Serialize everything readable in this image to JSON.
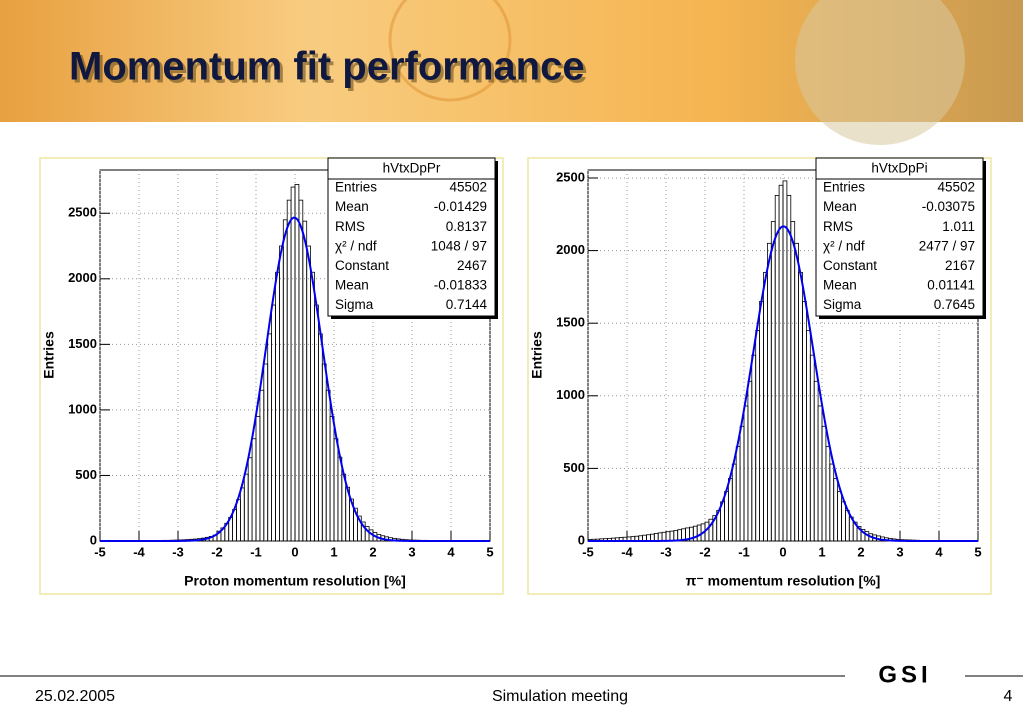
{
  "slide": {
    "title": "Momentum fit performance"
  },
  "footer": {
    "date": "25.02.2005",
    "event": "Simulation meeting",
    "page": 4,
    "logo": "GSI"
  },
  "chart_data": [
    {
      "type": "histogram",
      "xlabel": "Proton momentum resolution [%]",
      "ylabel": "Entries",
      "bins": [
        -5,
        -4.9,
        -4.8,
        -4.7,
        -4.6,
        -4.5,
        -4.4,
        -4.3,
        -4.2,
        -4.1,
        -4,
        -3.9,
        -3.8,
        -3.7,
        -3.6,
        -3.5,
        -3.4,
        -3.3,
        -3.2,
        -3.1,
        -3,
        -2.9,
        -2.8,
        -2.7,
        -2.6,
        -2.5,
        -2.4,
        -2.3,
        -2.2,
        -2.1,
        -2,
        -1.9,
        -1.8,
        -1.7,
        -1.6,
        -1.5,
        -1.4,
        -1.3,
        -1.2,
        -1.1,
        -1,
        -0.9,
        -0.8,
        -0.7,
        -0.6,
        -0.5,
        -0.4,
        -0.3,
        -0.2,
        -0.1,
        0,
        0.1,
        0.2,
        0.3,
        0.4,
        0.5,
        0.6,
        0.7,
        0.8,
        0.9,
        1,
        1.1,
        1.2,
        1.3,
        1.4,
        1.5,
        1.6,
        1.7,
        1.8,
        1.9,
        2,
        2.1,
        2.2,
        2.3,
        2.4,
        2.5,
        2.6,
        2.7,
        2.8,
        2.9,
        3,
        3.1,
        3.2,
        3.3,
        3.4,
        3.5,
        3.6,
        3.7,
        3.8,
        3.9,
        4,
        4.1,
        4.2,
        4.3,
        4.4,
        4.5,
        4.6,
        4.7,
        4.8,
        4.9,
        5
      ],
      "counts": [
        1,
        1,
        1,
        1,
        1,
        1,
        1,
        2,
        2,
        2,
        2,
        3,
        3,
        3,
        4,
        4,
        5,
        5,
        6,
        7,
        8,
        9,
        11,
        13,
        15,
        18,
        22,
        28,
        35,
        45,
        75,
        100,
        135,
        180,
        240,
        315,
        405,
        510,
        635,
        780,
        950,
        1150,
        1350,
        1580,
        1800,
        2050,
        2250,
        2450,
        2600,
        2700,
        2720,
        2600,
        2440,
        2250,
        2050,
        1800,
        1580,
        1350,
        1150,
        950,
        780,
        640,
        510,
        410,
        320,
        250,
        190,
        145,
        110,
        85,
        65,
        50,
        40,
        32,
        25,
        20,
        16,
        13,
        10,
        8,
        7,
        6,
        5,
        5,
        4,
        4,
        3,
        3,
        3,
        2,
        2,
        2,
        2,
        1,
        1,
        1,
        1,
        1,
        1,
        1
      ],
      "color": "#000000",
      "fit_color": "#0000ee",
      "xlim": [
        -5,
        5
      ],
      "ylim": [
        0,
        2830
      ],
      "xticks": [
        -5,
        -4,
        -3,
        -2,
        -1,
        0,
        1,
        2,
        3,
        4,
        5
      ],
      "yticks": [
        0,
        500,
        1000,
        1500,
        2000,
        2500
      ],
      "grid": true,
      "stats": {
        "title": "hVtxDpPr",
        "rows": [
          {
            "label": "Entries",
            "value": 45502
          },
          {
            "label": "Mean",
            "value": -0.01429
          },
          {
            "label": "RMS",
            "value": 0.8137
          },
          {
            "label": "χ² / ndf",
            "value": "1048 / 97"
          },
          {
            "label": "Constant",
            "value": 2467
          },
          {
            "label": "Mean",
            "value": -0.01833
          },
          {
            "label": "Sigma",
            "value": 0.7144
          }
        ]
      }
    },
    {
      "type": "histogram",
      "xlabel": "π⁻ momentum resolution [%]",
      "ylabel": "Entries",
      "bins": [
        -5,
        -4.9,
        -4.8,
        -4.7,
        -4.6,
        -4.5,
        -4.4,
        -4.3,
        -4.2,
        -4.1,
        -4,
        -3.9,
        -3.8,
        -3.7,
        -3.6,
        -3.5,
        -3.4,
        -3.3,
        -3.2,
        -3.1,
        -3,
        -2.9,
        -2.8,
        -2.7,
        -2.6,
        -2.5,
        -2.4,
        -2.3,
        -2.2,
        -2.1,
        -2,
        -1.9,
        -1.8,
        -1.7,
        -1.6,
        -1.5,
        -1.4,
        -1.3,
        -1.2,
        -1.1,
        -1,
        -0.9,
        -0.8,
        -0.7,
        -0.6,
        -0.5,
        -0.4,
        -0.3,
        -0.2,
        -0.1,
        0,
        0.1,
        0.2,
        0.3,
        0.4,
        0.5,
        0.6,
        0.7,
        0.8,
        0.9,
        1,
        1.1,
        1.2,
        1.3,
        1.4,
        1.5,
        1.6,
        1.7,
        1.8,
        1.9,
        2,
        2.1,
        2.2,
        2.3,
        2.4,
        2.5,
        2.6,
        2.7,
        2.8,
        2.9,
        3,
        3.1,
        3.2,
        3.3,
        3.4,
        3.5,
        3.6,
        3.7,
        3.8,
        3.9,
        4,
        4.1,
        4.2,
        4.3,
        4.4,
        4.5,
        4.6,
        4.7,
        4.8,
        4.9,
        5
      ],
      "counts": [
        10,
        12,
        13,
        15,
        16,
        18,
        20,
        22,
        24,
        26,
        28,
        30,
        33,
        36,
        40,
        43,
        47,
        52,
        56,
        60,
        64,
        68,
        72,
        78,
        84,
        90,
        95,
        102,
        110,
        118,
        130,
        150,
        175,
        210,
        270,
        340,
        430,
        530,
        650,
        790,
        930,
        1100,
        1280,
        1450,
        1650,
        1850,
        2050,
        2200,
        2380,
        2450,
        2480,
        2380,
        2200,
        2050,
        1850,
        1650,
        1450,
        1280,
        1100,
        930,
        790,
        650,
        530,
        430,
        340,
        270,
        210,
        165,
        130,
        100,
        80,
        65,
        50,
        42,
        35,
        28,
        22,
        18,
        14,
        11,
        9,
        8,
        7,
        6,
        5,
        4,
        4,
        3,
        3,
        2,
        2,
        2,
        2,
        1,
        1,
        1,
        1,
        1,
        1,
        1
      ],
      "color": "#000000",
      "fit_color": "#0000ee",
      "xlim": [
        -5,
        5
      ],
      "ylim": [
        0,
        2555
      ],
      "xticks": [
        -5,
        -4,
        -3,
        -2,
        -1,
        0,
        1,
        2,
        3,
        4,
        5
      ],
      "yticks": [
        0,
        500,
        1000,
        1500,
        2000,
        2500
      ],
      "grid": true,
      "stats": {
        "title": "hVtxDpPi",
        "rows": [
          {
            "label": "Entries",
            "value": 45502
          },
          {
            "label": "Mean",
            "value": -0.03075
          },
          {
            "label": "RMS",
            "value": 1.011
          },
          {
            "label": "χ² / ndf",
            "value": "2477 / 97"
          },
          {
            "label": "Constant",
            "value": 2167
          },
          {
            "label": "Mean",
            "value": 0.01141
          },
          {
            "label": "Sigma",
            "value": 0.7645
          }
        ]
      }
    }
  ]
}
